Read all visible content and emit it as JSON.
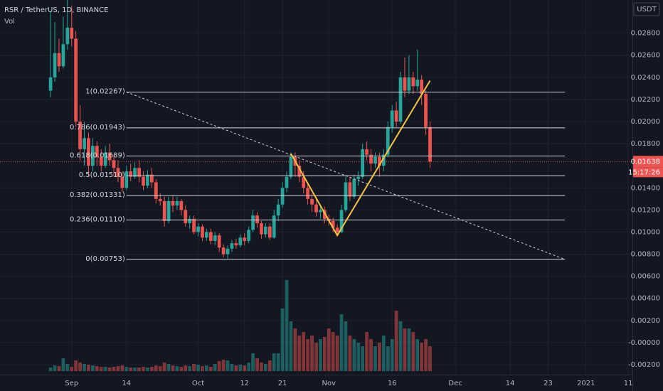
{
  "chart_data": {
    "type": "candlestick",
    "title": "RSR / TetherUS, 1D, BINANCE",
    "volume_label": "Vol",
    "currency": "USDT",
    "last_price": 0.01638,
    "countdown": "15:17:26",
    "up_color": "#26a69a",
    "down_color": "#ef5350",
    "grid": true,
    "xlim": [
      "2020-08-15",
      "2021-01-12"
    ],
    "xticks": [
      {
        "value": "2020-09-01",
        "label": "Sep"
      },
      {
        "value": "2020-09-14",
        "label": "14"
      },
      {
        "value": "2020-10-01",
        "label": "Oct"
      },
      {
        "value": "2020-10-12",
        "label": "12"
      },
      {
        "value": "2020-10-21",
        "label": "21"
      },
      {
        "value": "2020-11-01",
        "label": "Nov"
      },
      {
        "value": "2020-11-16",
        "label": "16"
      },
      {
        "value": "2020-12-01",
        "label": "Dec"
      },
      {
        "value": "2020-12-14",
        "label": "14"
      },
      {
        "value": "2020-12-23",
        "label": "23"
      },
      {
        "value": "2021-01-01",
        "label": "2021"
      },
      {
        "value": "2021-01-11",
        "label": "11"
      }
    ],
    "ylim": [
      -0.0029,
      0.031
    ],
    "yticks": [
      {
        "value": 0.028,
        "label": "0.02800"
      },
      {
        "value": 0.026,
        "label": "0.02600"
      },
      {
        "value": 0.024,
        "label": "0.02400"
      },
      {
        "value": 0.022,
        "label": "0.02200"
      },
      {
        "value": 0.02,
        "label": "0.02000"
      },
      {
        "value": 0.018,
        "label": "0.01800"
      },
      {
        "value": 0.014,
        "label": "0.01400"
      },
      {
        "value": 0.012,
        "label": "0.01200"
      },
      {
        "value": 0.01,
        "label": "0.01000"
      },
      {
        "value": 0.008,
        "label": "0.00800"
      },
      {
        "value": 0.006,
        "label": "0.00600"
      },
      {
        "value": 0.004,
        "label": "0.00400"
      },
      {
        "value": 0.002,
        "label": "0.00200"
      },
      {
        "value": 0,
        "label": "-0.00000"
      },
      {
        "value": -0.002,
        "label": "-0.00200"
      }
    ],
    "volume_ylim": [
      0,
      130
    ],
    "start_date": "2020-08-27",
    "open": [
      0.0228,
      0.024,
      0.0262,
      0.025,
      0.027,
      0.0285,
      0.0275,
      0.02,
      0.0175,
      0.0185,
      0.016,
      0.0178,
      0.0168,
      0.016,
      0.0172,
      0.0165,
      0.0158,
      0.015,
      0.014,
      0.0155,
      0.015,
      0.0158,
      0.015,
      0.0142,
      0.0152,
      0.0145,
      0.013,
      0.0128,
      0.011,
      0.0128,
      0.0124,
      0.0128,
      0.012,
      0.0108,
      0.0112,
      0.01,
      0.0105,
      0.0095,
      0.01,
      0.0092,
      0.0097,
      0.0086,
      0.008,
      0.0085,
      0.009,
      0.0088,
      0.0095,
      0.0092,
      0.0102,
      0.0115,
      0.0108,
      0.0098,
      0.0105,
      0.0095,
      0.0115,
      0.0125,
      0.014,
      0.015,
      0.0168,
      0.016,
      0.015,
      0.014,
      0.013,
      0.0125,
      0.0118,
      0.012,
      0.0112,
      0.011,
      0.0104,
      0.01,
      0.012,
      0.0145,
      0.0132,
      0.0148,
      0.015,
      0.0175,
      0.017,
      0.0162,
      0.0168,
      0.016,
      0.017,
      0.0195,
      0.021,
      0.02,
      0.024,
      0.0228,
      0.024,
      0.0232,
      0.0238,
      0.0225,
      0.0195
    ],
    "high": [
      0.03,
      0.029,
      0.0275,
      0.0295,
      0.031,
      0.0305,
      0.0282,
      0.0215,
      0.02,
      0.019,
      0.0185,
      0.0182,
      0.0175,
      0.0178,
      0.018,
      0.017,
      0.0165,
      0.0155,
      0.016,
      0.0162,
      0.0163,
      0.0165,
      0.0155,
      0.0156,
      0.0158,
      0.0148,
      0.0135,
      0.0132,
      0.0132,
      0.0133,
      0.0132,
      0.013,
      0.0124,
      0.0115,
      0.0115,
      0.0108,
      0.0107,
      0.0103,
      0.0103,
      0.01,
      0.0099,
      0.0089,
      0.0088,
      0.0093,
      0.0094,
      0.0098,
      0.0099,
      0.0105,
      0.012,
      0.0118,
      0.011,
      0.0108,
      0.0108,
      0.012,
      0.013,
      0.0145,
      0.0155,
      0.0172,
      0.0172,
      0.0165,
      0.0155,
      0.0145,
      0.0135,
      0.013,
      0.0125,
      0.0123,
      0.0116,
      0.0113,
      0.0107,
      0.0125,
      0.015,
      0.015,
      0.0152,
      0.0155,
      0.018,
      0.0182,
      0.0175,
      0.0172,
      0.0172,
      0.0175,
      0.02,
      0.0215,
      0.0218,
      0.0245,
      0.0258,
      0.026,
      0.0245,
      0.0265,
      0.0242,
      0.0228,
      0.02
    ],
    "low": [
      0.0222,
      0.0236,
      0.0245,
      0.0248,
      0.0265,
      0.0268,
      0.0195,
      0.0165,
      0.016,
      0.015,
      0.0155,
      0.016,
      0.0155,
      0.0158,
      0.016,
      0.015,
      0.0145,
      0.0136,
      0.0138,
      0.0146,
      0.0148,
      0.0145,
      0.0138,
      0.014,
      0.014,
      0.0126,
      0.0124,
      0.0105,
      0.0108,
      0.0118,
      0.012,
      0.0115,
      0.0105,
      0.0103,
      0.0098,
      0.0096,
      0.0092,
      0.0092,
      0.0089,
      0.0088,
      0.0082,
      0.0077,
      0.0076,
      0.0082,
      0.0085,
      0.0086,
      0.0088,
      0.009,
      0.01,
      0.0104,
      0.0094,
      0.0095,
      0.0093,
      0.0094,
      0.011,
      0.0122,
      0.0136,
      0.0148,
      0.015,
      0.0145,
      0.0135,
      0.0125,
      0.0118,
      0.0114,
      0.0112,
      0.0108,
      0.0106,
      0.01,
      0.0097,
      0.0099,
      0.0118,
      0.0128,
      0.013,
      0.0142,
      0.0148,
      0.0165,
      0.0155,
      0.0158,
      0.015,
      0.0155,
      0.0168,
      0.019,
      0.0195,
      0.0198,
      0.0222,
      0.0225,
      0.0225,
      0.0228,
      0.0215,
      0.0188,
      0.0158
    ],
    "close": [
      0.024,
      0.0262,
      0.025,
      0.027,
      0.0285,
      0.0275,
      0.02,
      0.0175,
      0.0185,
      0.016,
      0.0178,
      0.0168,
      0.016,
      0.0172,
      0.0165,
      0.0158,
      0.015,
      0.014,
      0.0155,
      0.015,
      0.0158,
      0.015,
      0.0142,
      0.0152,
      0.0145,
      0.013,
      0.0128,
      0.011,
      0.0128,
      0.0124,
      0.0128,
      0.012,
      0.0108,
      0.0112,
      0.01,
      0.0105,
      0.0095,
      0.01,
      0.0092,
      0.0097,
      0.0086,
      0.008,
      0.0085,
      0.009,
      0.0088,
      0.0095,
      0.0092,
      0.0102,
      0.0115,
      0.0108,
      0.0098,
      0.0105,
      0.0095,
      0.0115,
      0.0125,
      0.014,
      0.015,
      0.0168,
      0.016,
      0.015,
      0.014,
      0.013,
      0.0125,
      0.0118,
      0.012,
      0.0112,
      0.011,
      0.0104,
      0.01,
      0.012,
      0.0145,
      0.0132,
      0.0148,
      0.015,
      0.0175,
      0.017,
      0.0162,
      0.0168,
      0.016,
      0.017,
      0.0195,
      0.021,
      0.02,
      0.024,
      0.0228,
      0.024,
      0.0232,
      0.0238,
      0.0225,
      0.0195,
      0.01638
    ],
    "volume": [
      5,
      8,
      7,
      18,
      10,
      6,
      15,
      12,
      10,
      9,
      8,
      7,
      6,
      6,
      5,
      6,
      7,
      8,
      6,
      5,
      5,
      5,
      6,
      5,
      6,
      8,
      7,
      12,
      10,
      8,
      7,
      6,
      8,
      7,
      10,
      9,
      7,
      8,
      6,
      10,
      14,
      16,
      15,
      10,
      8,
      9,
      8,
      12,
      25,
      18,
      12,
      10,
      15,
      25,
      25,
      88,
      128,
      70,
      60,
      50,
      55,
      45,
      50,
      40,
      45,
      48,
      60,
      55,
      50,
      80,
      70,
      50,
      45,
      40,
      35,
      55,
      45,
      35,
      40,
      50,
      35,
      45,
      85,
      70,
      60,
      60,
      55,
      45,
      40,
      45,
      35
    ],
    "fib_levels": [
      {
        "value": 0.02267,
        "label": "1(0.02267)"
      },
      {
        "value": 0.01943,
        "label": "0.786(0.01943)"
      },
      {
        "value": 0.01689,
        "label": "0.618(0.01689)"
      },
      {
        "value": 0.0151,
        "label": "0.5(0.01510)"
      },
      {
        "value": 0.01331,
        "label": "0.382(0.01331)"
      },
      {
        "value": 0.0111,
        "label": "0.236(0.01110)"
      },
      {
        "value": 0.00753,
        "label": "0(0.00753)"
      }
    ],
    "fib_range": [
      "2020-09-14",
      "2020-12-27"
    ],
    "trend_line": {
      "x": [
        "2020-09-14",
        "2020-12-27"
      ],
      "values": [
        0.02267,
        0.00753
      ]
    },
    "pattern_line": {
      "x": [
        "2020-10-23",
        "2020-11-03",
        "2020-11-25"
      ],
      "values": [
        0.0171,
        0.0097,
        0.0237
      ]
    }
  }
}
